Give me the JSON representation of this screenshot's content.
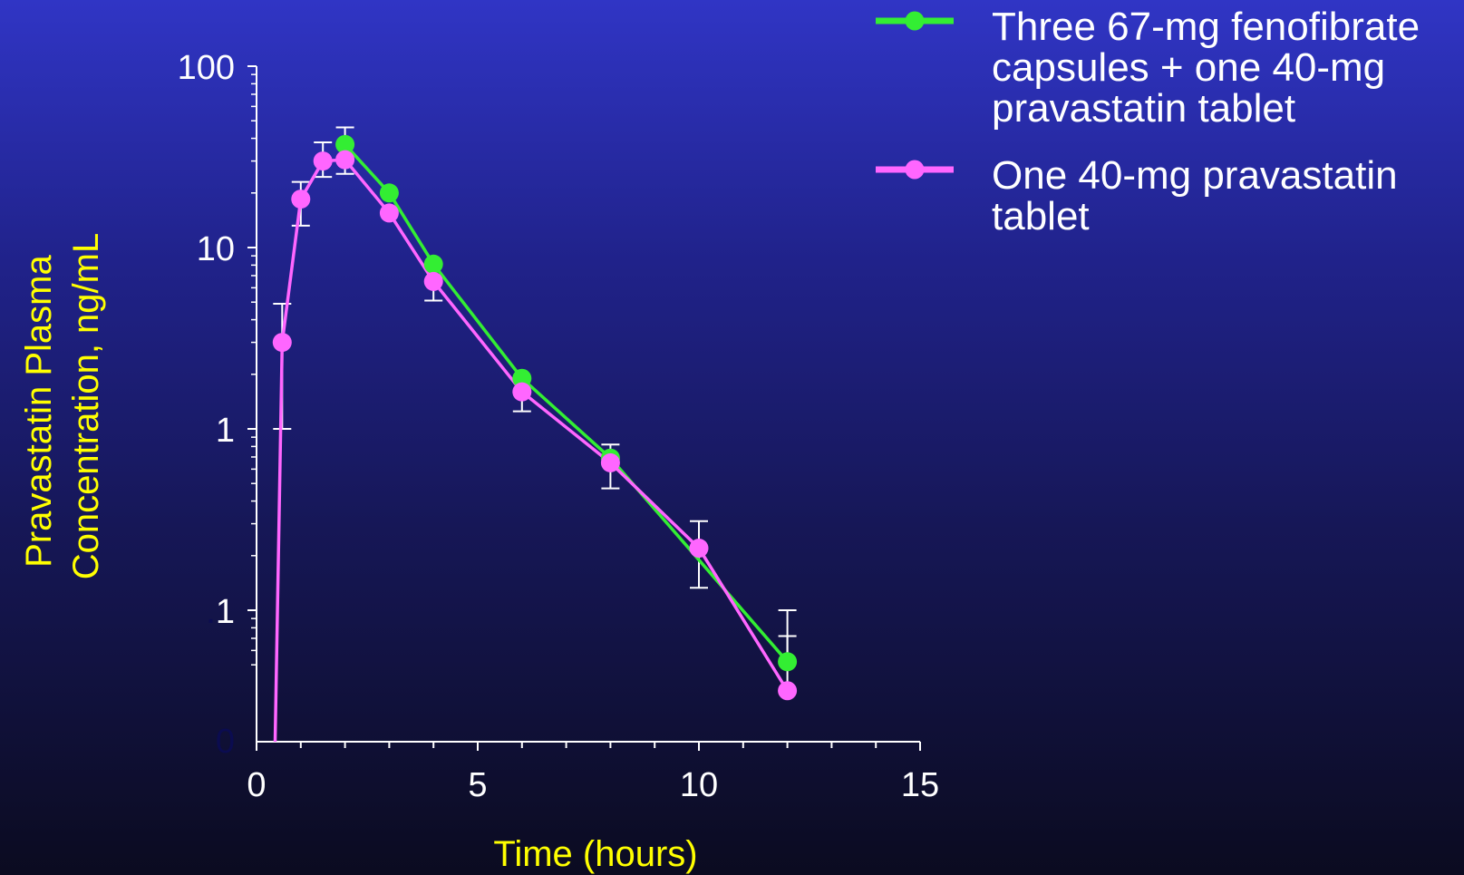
{
  "chart_data": {
    "type": "line",
    "title": "",
    "xlabel": "Time (hours)",
    "ylabel_lines": [
      "Pravastatin Plasma",
      "Concentration, ng/mL"
    ],
    "x_scale": "linear",
    "y_scale": "log",
    "xlim": [
      0,
      15
    ],
    "ylim": [
      0.01,
      100
    ],
    "x_ticks": [
      0,
      5,
      10,
      15
    ],
    "x_tick_labels": [
      "0",
      "5",
      "10",
      "15"
    ],
    "y_ticks": [
      1,
      10,
      100
    ],
    "y_tick_labels": [
      "1",
      "10",
      "100"
    ],
    "y_tick_label_point_one": ".1",
    "y_tick_label_point_one_prefix": ".",
    "y_tick_label_point_one_digit": "1",
    "y_zero_label": "0",
    "grid": false,
    "legend_position": "top-right",
    "error_bar_color": "#ffffff",
    "series": [
      {
        "name_lines": [
          "Three 67-mg fenofibrate",
          "capsules + one 40-mg",
          "pravastatin tablet"
        ],
        "color": "#33ee33",
        "points": [
          {
            "x": 2.0,
            "y": 37,
            "err_high": 46
          },
          {
            "x": 3.0,
            "y": 20
          },
          {
            "x": 4.0,
            "y": 8.1
          },
          {
            "x": 6.0,
            "y": 1.9
          },
          {
            "x": 8.0,
            "y": 0.69,
            "err_high": 0.82
          },
          {
            "x": 12.0,
            "y": 0.052,
            "err_high": 0.1
          }
        ]
      },
      {
        "name_lines": [
          "One 40-mg pravastatin",
          "tablet"
        ],
        "color": "#ff66ff",
        "leading_segment": {
          "x": 0.42,
          "y": 0.01
        },
        "points": [
          {
            "x": 0.58,
            "y": 3.0,
            "err_high": 4.9,
            "err_low": 1.0
          },
          {
            "x": 1.0,
            "y": 18.5,
            "err_high": 23,
            "err_low": 13.2
          },
          {
            "x": 1.5,
            "y": 30,
            "err_high": 38,
            "err_low": 24.5
          },
          {
            "x": 2.0,
            "y": 30.5,
            "err_low": 25.5
          },
          {
            "x": 3.0,
            "y": 15.5
          },
          {
            "x": 4.0,
            "y": 6.5,
            "err_low": 5.1
          },
          {
            "x": 6.0,
            "y": 1.6,
            "err_low": 1.25
          },
          {
            "x": 8.0,
            "y": 0.65,
            "err_low": 0.47
          },
          {
            "x": 10.0,
            "y": 0.22,
            "err_high": 0.31,
            "err_low": 0.133
          },
          {
            "x": 12.0,
            "y": 0.036,
            "err_high": 0.072
          }
        ]
      }
    ]
  }
}
